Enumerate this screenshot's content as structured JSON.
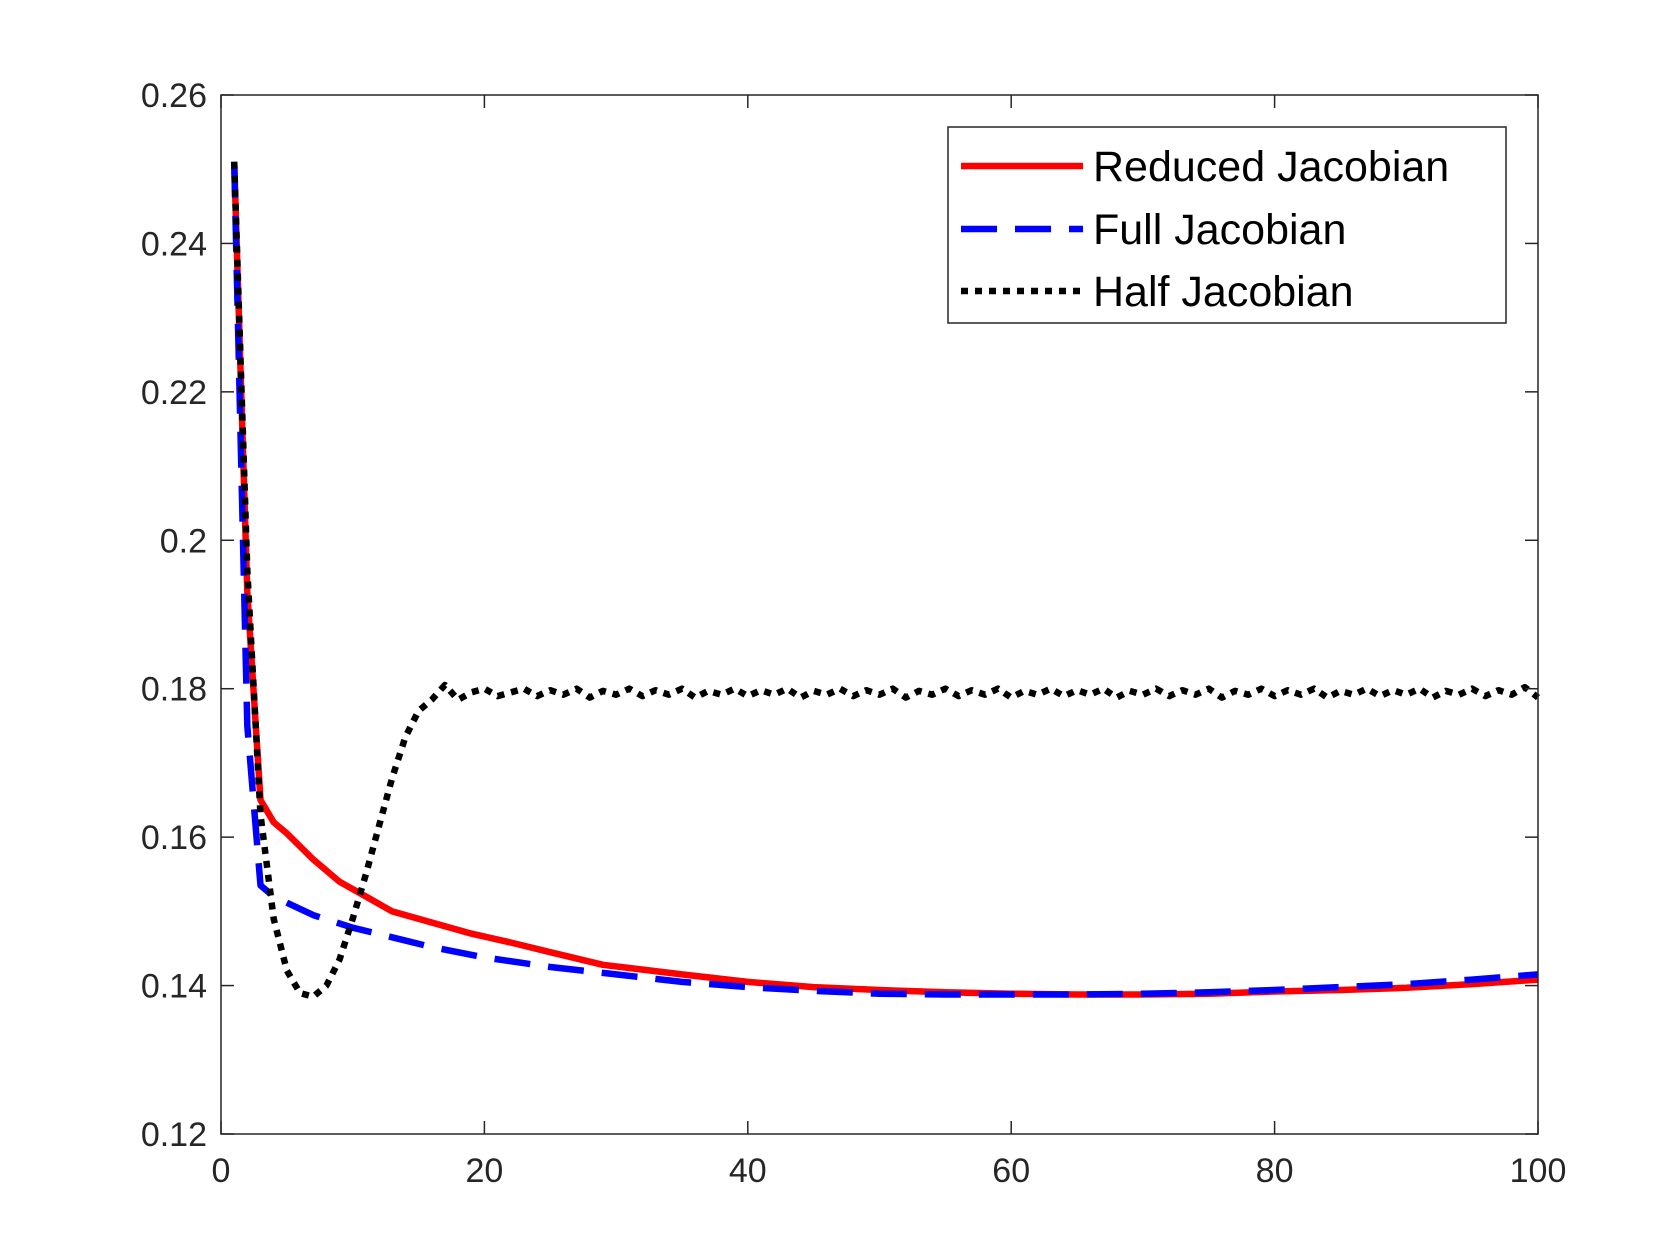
{
  "chart_data": {
    "type": "line",
    "title": "",
    "xlabel": "",
    "ylabel": "",
    "xlim": [
      0,
      100
    ],
    "ylim": [
      0.12,
      0.26
    ],
    "xticks": [
      0,
      20,
      40,
      60,
      80,
      100
    ],
    "xtick_labels": [
      "0",
      "20",
      "40",
      "60",
      "80",
      "100"
    ],
    "yticks": [
      0.12,
      0.14,
      0.16,
      0.18,
      0.2,
      0.22,
      0.24,
      0.26
    ],
    "ytick_labels": [
      "0.12",
      "0.14",
      "0.16",
      "0.18",
      "0.2",
      "0.22",
      "0.24",
      "0.26"
    ],
    "grid": false,
    "legend_position": "top-right",
    "series": [
      {
        "name": "Reduced Jacobian",
        "color": "#ff0000",
        "style": "solid",
        "x": [
          1,
          2,
          3,
          4,
          5,
          7,
          9,
          11,
          13,
          16,
          19,
          22,
          25,
          29,
          35,
          40,
          45,
          50,
          55,
          60,
          65,
          70,
          75,
          80,
          85,
          90,
          95,
          100
        ],
        "y": [
          0.251,
          0.193,
          0.165,
          0.162,
          0.1605,
          0.157,
          0.154,
          0.152,
          0.15,
          0.1485,
          0.147,
          0.1458,
          0.1445,
          0.1428,
          0.1415,
          0.1405,
          0.1398,
          0.1394,
          0.1391,
          0.1389,
          0.1388,
          0.1388,
          0.1389,
          0.1392,
          0.1394,
          0.1397,
          0.1402,
          0.1408
        ]
      },
      {
        "name": "Full Jacobian",
        "color": "#0000ff",
        "style": "dashed",
        "x": [
          1,
          2,
          3,
          4,
          7,
          10,
          13,
          16,
          20,
          25,
          30,
          35,
          40,
          45,
          50,
          55,
          60,
          65,
          70,
          75,
          80,
          85,
          90,
          95,
          100
        ],
        "y": [
          0.251,
          0.175,
          0.1535,
          0.152,
          0.1495,
          0.1478,
          0.1465,
          0.1452,
          0.1438,
          0.1425,
          0.1415,
          0.1405,
          0.1398,
          0.1393,
          0.1389,
          0.1388,
          0.1388,
          0.1388,
          0.1389,
          0.1391,
          0.1394,
          0.1398,
          0.1402,
          0.1408,
          0.1415
        ]
      },
      {
        "name": "Half Jacobian",
        "color": "#000000",
        "style": "dotted",
        "x": [
          1,
          2,
          3,
          4,
          5,
          6,
          7,
          8,
          9,
          10,
          11,
          12,
          13,
          14,
          15,
          16,
          17,
          18,
          19,
          20,
          21,
          22,
          23,
          24,
          25,
          26,
          27,
          28,
          29,
          30,
          31,
          32,
          33,
          34,
          35,
          36,
          37,
          38,
          39,
          40,
          41,
          42,
          43,
          44,
          45,
          46,
          47,
          48,
          49,
          50,
          51,
          52,
          53,
          54,
          55,
          56,
          57,
          58,
          59,
          60,
          61,
          62,
          63,
          64,
          65,
          66,
          67,
          68,
          69,
          70,
          71,
          72,
          73,
          74,
          75,
          76,
          77,
          78,
          79,
          80,
          81,
          82,
          83,
          84,
          85,
          86,
          87,
          88,
          89,
          90,
          91,
          92,
          93,
          94,
          95,
          96,
          97,
          98,
          99,
          100
        ],
        "y": [
          0.251,
          0.196,
          0.163,
          0.149,
          0.142,
          0.139,
          0.1385,
          0.14,
          0.1435,
          0.149,
          0.155,
          0.1615,
          0.168,
          0.1735,
          0.177,
          0.1785,
          0.1805,
          0.1785,
          0.1795,
          0.18,
          0.179,
          0.1795,
          0.18,
          0.179,
          0.1798,
          0.1792,
          0.18,
          0.1788,
          0.1797,
          0.1792,
          0.18,
          0.179,
          0.1798,
          0.1792,
          0.18,
          0.1788,
          0.1797,
          0.1792,
          0.18,
          0.179,
          0.1798,
          0.1792,
          0.18,
          0.1788,
          0.1797,
          0.1792,
          0.18,
          0.179,
          0.1798,
          0.1792,
          0.18,
          0.1788,
          0.1797,
          0.1792,
          0.18,
          0.179,
          0.1798,
          0.1792,
          0.18,
          0.1788,
          0.1797,
          0.1792,
          0.18,
          0.179,
          0.1798,
          0.1792,
          0.18,
          0.1788,
          0.1797,
          0.1792,
          0.18,
          0.179,
          0.1798,
          0.1792,
          0.18,
          0.1788,
          0.1797,
          0.1792,
          0.18,
          0.179,
          0.1798,
          0.1792,
          0.18,
          0.1788,
          0.1797,
          0.1792,
          0.18,
          0.179,
          0.1798,
          0.1792,
          0.18,
          0.1788,
          0.1797,
          0.1792,
          0.18,
          0.179,
          0.1798,
          0.1792,
          0.1802,
          0.1788
        ]
      }
    ]
  }
}
